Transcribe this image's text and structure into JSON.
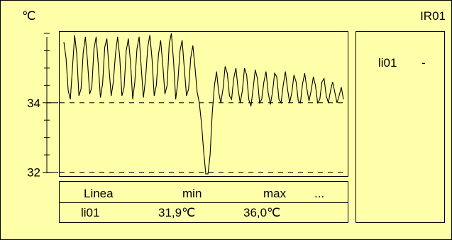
{
  "panel": {
    "unit": "℃",
    "title": "IR01",
    "colors": {
      "background": "#ffffaa",
      "line": "#000000"
    }
  },
  "chart_data": {
    "type": "line",
    "title": "",
    "ylabel": "",
    "ylim": [
      31.95,
      36.04
    ],
    "y_ticks": [
      {
        "value": 32,
        "label": "32"
      },
      {
        "value": 34,
        "label": "34"
      }
    ],
    "reference_lines": [
      32,
      34
    ],
    "series": [
      {
        "name": "li01",
        "values": [
          35.75,
          35.3,
          34.35,
          34.1,
          35.0,
          35.95,
          35.4,
          34.2,
          34.4,
          35.45,
          35.9,
          35.2,
          34.25,
          34.45,
          35.55,
          35.9,
          35.1,
          34.15,
          34.55,
          35.6,
          35.85,
          35.0,
          34.2,
          34.6,
          35.4,
          35.9,
          35.3,
          34.2,
          34.45,
          35.5,
          35.85,
          35.15,
          34.1,
          34.6,
          35.55,
          35.9,
          35.0,
          34.15,
          34.7,
          35.6,
          35.95,
          35.25,
          34.2,
          34.5,
          35.4,
          35.8,
          35.1,
          34.25,
          34.5,
          35.7,
          36.0,
          35.2,
          34.1,
          34.6,
          35.5,
          35.8,
          35.0,
          34.2,
          34.4,
          35.3,
          35.65,
          35.0,
          34.3,
          34.0,
          33.4,
          32.6,
          31.95,
          31.95,
          32.5,
          33.7,
          34.5,
          34.9,
          34.3,
          34.0,
          34.4,
          35.05,
          34.85,
          34.2,
          34.1,
          34.7,
          35.0,
          34.4,
          34.0,
          34.35,
          35.0,
          34.8,
          34.1,
          33.9,
          34.4,
          34.95,
          34.7,
          34.0,
          34.1,
          34.6,
          34.9,
          34.3,
          33.95,
          34.3,
          34.85,
          34.75,
          34.1,
          34.0,
          34.5,
          34.9,
          34.4,
          34.0,
          34.3,
          34.8,
          34.6,
          34.05,
          34.0,
          34.55,
          34.85,
          34.4,
          34.05,
          34.35,
          34.75,
          34.5,
          34.0,
          34.1,
          34.6,
          34.7,
          34.2,
          34.0,
          34.35,
          34.6,
          34.3,
          34.0,
          34.2,
          34.45,
          34.1
        ]
      }
    ]
  },
  "table": {
    "headers": [
      "Linea",
      "min",
      "max",
      "..."
    ],
    "rows": [
      [
        "li01",
        "31,9℃",
        "36,0℃",
        ""
      ]
    ]
  },
  "legend": {
    "items": [
      {
        "name": "li01",
        "value": "-"
      }
    ]
  }
}
